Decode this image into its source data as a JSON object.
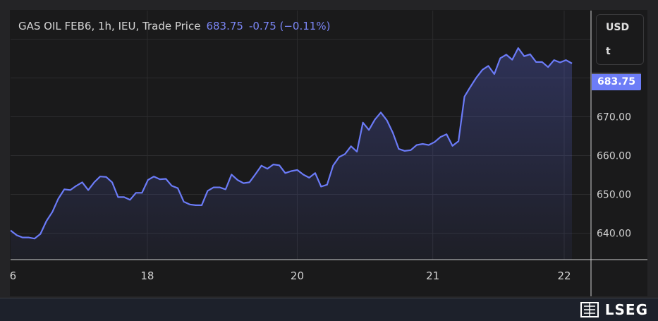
{
  "header": {
    "instrument": "GAS OIL FEB6, 1h, IEU, Trade Price",
    "last": "683.75",
    "change": "-0.75 (−0.11%)"
  },
  "units": {
    "currency": "USD",
    "unit": "t"
  },
  "price_badge": "683.75",
  "footer": {
    "brand": "LSEG"
  },
  "colors": {
    "line": "#6b7bf7",
    "background": "#1a1a1b",
    "badge": "#6d7df7"
  },
  "chart_data": {
    "type": "area",
    "title": "GAS OIL FEB6, 1h, IEU, Trade Price",
    "ylabel": "USD/t",
    "ylim": [
      632,
      695
    ],
    "y_ticks": [
      640,
      650,
      660,
      670
    ],
    "y_tick_labels": [
      "640.00",
      "650.00",
      "660.00",
      "670.00"
    ],
    "y_gridlines": [
      640,
      650,
      660,
      670,
      680,
      690
    ],
    "x_ticks": [
      {
        "label": "6",
        "index": 0.4
      },
      {
        "label": "18",
        "index": 22.9
      },
      {
        "label": "20",
        "index": 48.0
      },
      {
        "label": "21",
        "index": 70.7
      },
      {
        "label": "22",
        "index": 92.7
      }
    ],
    "grid": true,
    "series": [
      {
        "name": "Trade Price",
        "values": [
          640.7,
          639.5,
          638.9,
          638.9,
          638.6,
          639.8,
          643.1,
          645.5,
          648.9,
          651.3,
          651.1,
          652.2,
          653.1,
          651.1,
          653.1,
          654.6,
          654.5,
          653.1,
          649.3,
          649.3,
          648.6,
          650.4,
          650.4,
          653.7,
          654.6,
          653.9,
          654.0,
          652.2,
          651.6,
          648.1,
          647.4,
          647.2,
          647.2,
          650.9,
          651.8,
          651.8,
          651.3,
          655.1,
          653.7,
          652.9,
          653.1,
          655.2,
          657.4,
          656.6,
          657.7,
          657.5,
          655.5,
          656.0,
          656.3,
          655.1,
          654.3,
          655.5,
          652.0,
          652.5,
          657.4,
          659.6,
          660.4,
          662.4,
          661.0,
          668.5,
          666.6,
          669.3,
          671.1,
          669.1,
          665.9,
          661.7,
          661.2,
          661.4,
          662.7,
          663.0,
          662.7,
          663.5,
          664.8,
          665.5,
          662.5,
          663.7,
          675.2,
          677.7,
          680.1,
          682.1,
          683.1,
          681.0,
          685.1,
          686.0,
          684.7,
          687.7,
          685.6,
          686.1,
          684.1,
          684.1,
          682.8,
          684.6,
          684.0,
          684.6,
          683.75
        ]
      }
    ]
  }
}
